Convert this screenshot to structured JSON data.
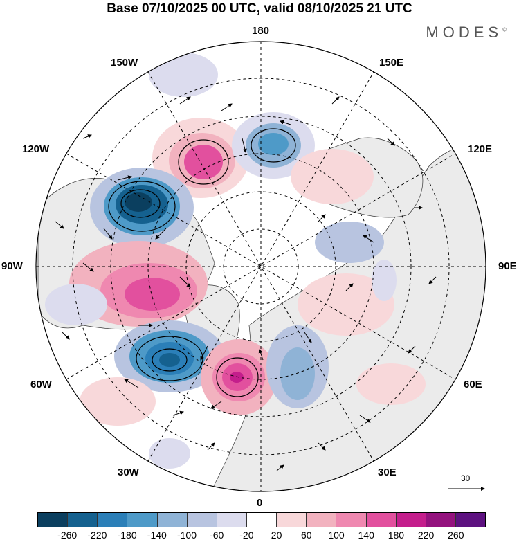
{
  "title": "Base 07/10/2025 00 UTC, valid 08/10/2025 21 UTC",
  "logo": "MODES",
  "logo_mark": "©",
  "longitude_labels": {
    "top": "180",
    "bottom": "0",
    "left": "90W",
    "right": "90E",
    "upper_left_1": "150W",
    "upper_left_2": "120W",
    "lower_left_1": "60W",
    "lower_left_2": "30W",
    "upper_right_1": "150E",
    "upper_right_2": "120E",
    "lower_right_1": "60E",
    "lower_right_2": "30E"
  },
  "vector_scale": "30",
  "colorbar": {
    "ticks": [
      "-260",
      "-220",
      "-180",
      "-140",
      "-100",
      "-60",
      "-20",
      "20",
      "60",
      "100",
      "140",
      "180",
      "220",
      "260"
    ],
    "colors": [
      "#0b3f5f",
      "#15618f",
      "#2b7fb8",
      "#4e9ac8",
      "#8fb3d6",
      "#b8c4e0",
      "#dcdcee",
      "#ffffff",
      "#f8d8da",
      "#f2b2bf",
      "#ef88b0",
      "#e2509e",
      "#c41e8c",
      "#94127e",
      "#5d1180"
    ]
  },
  "map_features": {
    "land_color": "#ebebeb",
    "features": [
      {
        "name": "low-pacific-west",
        "sign": "negative",
        "intensity": "weak"
      },
      {
        "name": "high-north-pacific",
        "sign": "positive",
        "intensity": "moderate"
      },
      {
        "name": "low-bering",
        "sign": "negative",
        "intensity": "moderate"
      },
      {
        "name": "low-alaska",
        "sign": "negative",
        "intensity": "strong"
      },
      {
        "name": "high-canada",
        "sign": "positive",
        "intensity": "strong"
      },
      {
        "name": "low-north-atlantic",
        "sign": "negative",
        "intensity": "strong"
      },
      {
        "name": "high-iceland",
        "sign": "positive",
        "intensity": "strong"
      },
      {
        "name": "low-scandinavia",
        "sign": "negative",
        "intensity": "moderate"
      },
      {
        "name": "high-siberia",
        "sign": "positive",
        "intensity": "weak"
      },
      {
        "name": "low-central-asia",
        "sign": "negative",
        "intensity": "weak"
      }
    ]
  }
}
